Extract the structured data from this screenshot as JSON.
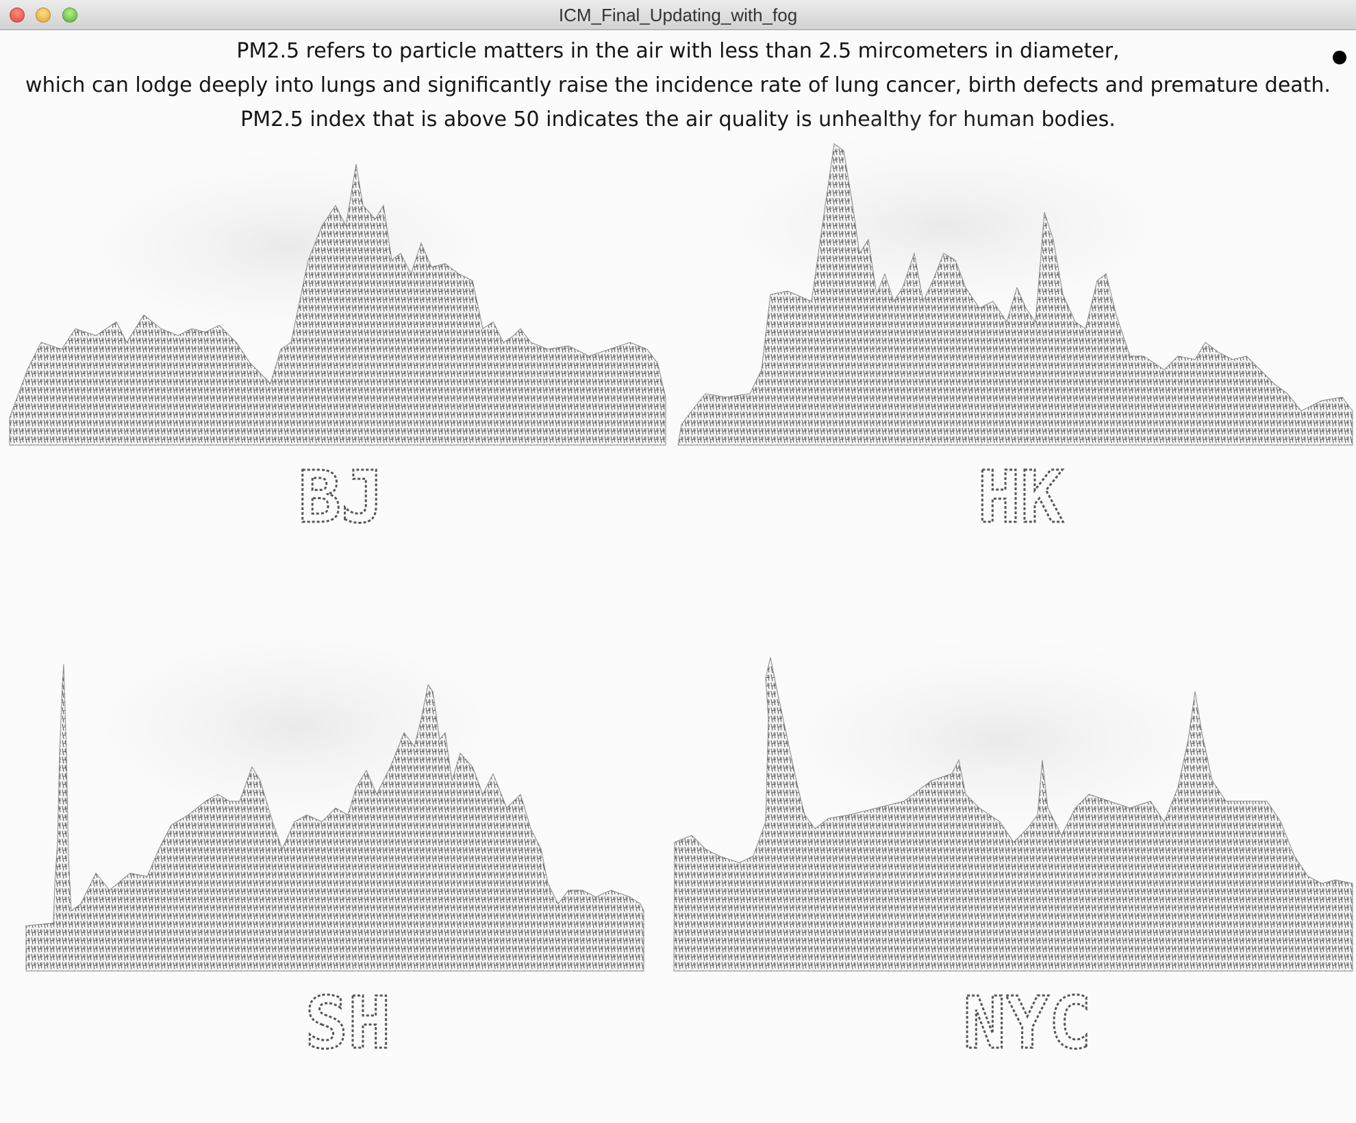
{
  "window": {
    "title": "ICM_Final_Updating_with_fog"
  },
  "intro": {
    "lines": [
      "PM2.5 refers to particle matters in the air with less than 2.5 mircometers in diameter,",
      "which can lodge deeply into lungs and significantly raise the incidence rate of lung cancer, birth defects and premature death.",
      "PM2.5 index that is above 50 indicates the air quality is unhealthy for human bodies."
    ]
  },
  "cities": [
    {
      "id": "bj",
      "label": "BJ"
    },
    {
      "id": "hk",
      "label": "HK"
    },
    {
      "id": "sh",
      "label": "SH"
    },
    {
      "id": "nyc",
      "label": "NYC"
    }
  ],
  "colors": {
    "text": "#151515",
    "skyline": "#6a6a6a",
    "fog": "#d8d8d8",
    "background": "#fbfbfb"
  }
}
